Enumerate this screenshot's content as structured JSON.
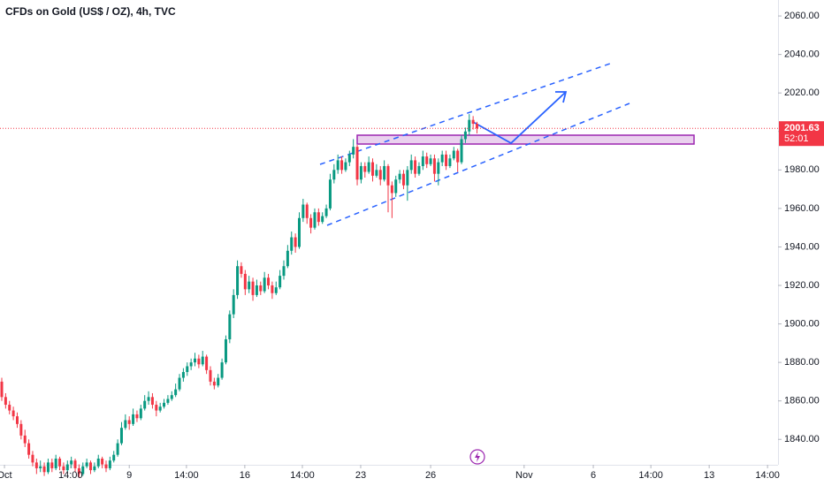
{
  "chart_data": {
    "type": "candlestick",
    "title": "CFDs on Gold (US$ / OZ), 4h, TVC",
    "up_color": "#089981",
    "down_color": "#f23645",
    "ylim": [
      1826.8,
      2068.3
    ],
    "yticks": [
      {
        "value": 1840,
        "label": "1840.00"
      },
      {
        "value": 1860,
        "label": "1860.00"
      },
      {
        "value": 1880,
        "label": "1880.00"
      },
      {
        "value": 1900,
        "label": "1900.00"
      },
      {
        "value": 1920,
        "label": "1920.00"
      },
      {
        "value": 1940,
        "label": "1940.00"
      },
      {
        "value": 1960,
        "label": "1960.00"
      },
      {
        "value": 1980,
        "label": "1980.00"
      },
      {
        "value": 2000,
        "label": "2000.00"
      },
      {
        "value": 2020,
        "label": "2020.00"
      },
      {
        "value": 2040,
        "label": "2040.00"
      },
      {
        "value": 2060,
        "label": "2060.00"
      }
    ],
    "xticks": [
      {
        "value": 0.7,
        "label": "Oct"
      },
      {
        "value": 17.8,
        "label": "14:00"
      },
      {
        "value": 33,
        "label": "9"
      },
      {
        "value": 47.8,
        "label": "14:00"
      },
      {
        "value": 62.9,
        "label": "16"
      },
      {
        "value": 77.8,
        "label": "14:00"
      },
      {
        "value": 92.9,
        "label": "23"
      },
      {
        "value": 111,
        "label": "26"
      },
      {
        "value": 135.2,
        "label": "Nov"
      },
      {
        "value": 153.1,
        "label": "6"
      },
      {
        "value": 168,
        "label": "14:00"
      },
      {
        "value": 183.1,
        "label": "13"
      },
      {
        "value": 198.2,
        "label": "14:00"
      }
    ],
    "last_price": 2001.63,
    "countdown": "52:01",
    "ohlc": [
      [
        1870,
        1872,
        1860,
        1862
      ],
      [
        1862,
        1864,
        1856,
        1858
      ],
      [
        1858,
        1860,
        1853,
        1855
      ],
      [
        1855,
        1857,
        1850,
        1852
      ],
      [
        1852,
        1854,
        1846,
        1848
      ],
      [
        1848,
        1850,
        1840,
        1842
      ],
      [
        1842,
        1845,
        1836,
        1838
      ],
      [
        1838,
        1840,
        1830,
        1832
      ],
      [
        1832,
        1834,
        1826,
        1828
      ],
      [
        1828,
        1830,
        1822,
        1825
      ],
      [
        1825,
        1829,
        1823,
        1826
      ],
      [
        1826,
        1828,
        1821,
        1823
      ],
      [
        1823,
        1830,
        1822,
        1828
      ],
      [
        1828,
        1830,
        1823,
        1825
      ],
      [
        1825,
        1832,
        1824,
        1830
      ],
      [
        1830,
        1831,
        1824,
        1826
      ],
      [
        1826,
        1828,
        1822,
        1824
      ],
      [
        1824,
        1829,
        1823,
        1827
      ],
      [
        1827,
        1831,
        1825,
        1829
      ],
      [
        1829,
        1830,
        1823,
        1825
      ],
      [
        1825,
        1827,
        1820,
        1822
      ],
      [
        1822,
        1828,
        1821,
        1826
      ],
      [
        1826,
        1830,
        1825,
        1828
      ],
      [
        1828,
        1829,
        1822,
        1824
      ],
      [
        1824,
        1828,
        1823,
        1826
      ],
      [
        1826,
        1832,
        1825,
        1830
      ],
      [
        1830,
        1831,
        1825,
        1827
      ],
      [
        1827,
        1829,
        1823,
        1825
      ],
      [
        1825,
        1831,
        1824,
        1829
      ],
      [
        1829,
        1834,
        1828,
        1832
      ],
      [
        1832,
        1840,
        1831,
        1838
      ],
      [
        1838,
        1849,
        1837,
        1846
      ],
      [
        1846,
        1853,
        1845,
        1850
      ],
      [
        1850,
        1852,
        1845,
        1848
      ],
      [
        1848,
        1856,
        1847,
        1853
      ],
      [
        1853,
        1855,
        1849,
        1851
      ],
      [
        1851,
        1858,
        1850,
        1856
      ],
      [
        1856,
        1863,
        1855,
        1860
      ],
      [
        1860,
        1865,
        1858,
        1862
      ],
      [
        1862,
        1864,
        1856,
        1858
      ],
      [
        1858,
        1860,
        1852,
        1855
      ],
      [
        1855,
        1859,
        1854,
        1857
      ],
      [
        1857,
        1861,
        1856,
        1859
      ],
      [
        1859,
        1863,
        1858,
        1861
      ],
      [
        1861,
        1865,
        1860,
        1863
      ],
      [
        1863,
        1869,
        1862,
        1866
      ],
      [
        1866,
        1874,
        1865,
        1872
      ],
      [
        1872,
        1877,
        1870,
        1875
      ],
      [
        1875,
        1880,
        1873,
        1878
      ],
      [
        1878,
        1882,
        1876,
        1880
      ],
      [
        1880,
        1885,
        1878,
        1882
      ],
      [
        1882,
        1884,
        1877,
        1879
      ],
      [
        1879,
        1886,
        1878,
        1883
      ],
      [
        1883,
        1884,
        1874,
        1876
      ],
      [
        1876,
        1878,
        1868,
        1870
      ],
      [
        1870,
        1872,
        1866,
        1868
      ],
      [
        1868,
        1874,
        1867,
        1872
      ],
      [
        1872,
        1882,
        1871,
        1880
      ],
      [
        1880,
        1894,
        1879,
        1892
      ],
      [
        1892,
        1907,
        1890,
        1905
      ],
      [
        1905,
        1918,
        1903,
        1915
      ],
      [
        1915,
        1933,
        1913,
        1930
      ],
      [
        1930,
        1932,
        1924,
        1926
      ],
      [
        1926,
        1928,
        1915,
        1918
      ],
      [
        1918,
        1925,
        1916,
        1922
      ],
      [
        1922,
        1924,
        1912,
        1915
      ],
      [
        1915,
        1923,
        1914,
        1920
      ],
      [
        1920,
        1922,
        1915,
        1917
      ],
      [
        1917,
        1927,
        1916,
        1924
      ],
      [
        1924,
        1926,
        1918,
        1920
      ],
      [
        1920,
        1922,
        1913,
        1916
      ],
      [
        1916,
        1922,
        1915,
        1919
      ],
      [
        1919,
        1928,
        1918,
        1925
      ],
      [
        1925,
        1933,
        1923,
        1930
      ],
      [
        1930,
        1941,
        1929,
        1938
      ],
      [
        1938,
        1948,
        1936,
        1945
      ],
      [
        1945,
        1947,
        1937,
        1940
      ],
      [
        1940,
        1958,
        1939,
        1955
      ],
      [
        1955,
        1965,
        1953,
        1962
      ],
      [
        1962,
        1963,
        1952,
        1955
      ],
      [
        1955,
        1957,
        1947,
        1950
      ],
      [
        1950,
        1960,
        1949,
        1958
      ],
      [
        1958,
        1960,
        1951,
        1953
      ],
      [
        1953,
        1958,
        1952,
        1956
      ],
      [
        1956,
        1962,
        1955,
        1960
      ],
      [
        1960,
        1978,
        1959,
        1975
      ],
      [
        1975,
        1983,
        1973,
        1980
      ],
      [
        1980,
        1988,
        1978,
        1985
      ],
      [
        1985,
        1987,
        1978,
        1980
      ],
      [
        1980,
        1986,
        1979,
        1984
      ],
      [
        1984,
        1990,
        1982,
        1988
      ],
      [
        1988,
        1996,
        1986,
        1992
      ],
      [
        1992,
        1993,
        1972,
        1975
      ],
      [
        1975,
        1984,
        1973,
        1982
      ],
      [
        1982,
        1984,
        1976,
        1979
      ],
      [
        1979,
        1987,
        1978,
        1984
      ],
      [
        1984,
        1986,
        1974,
        1977
      ],
      [
        1977,
        1983,
        1976,
        1980
      ],
      [
        1980,
        1982,
        1972,
        1975
      ],
      [
        1975,
        1985,
        1974,
        1982
      ],
      [
        1982,
        1983,
        1958,
        1972
      ],
      [
        1972,
        1974,
        1955,
        1968
      ],
      [
        1968,
        1977,
        1966,
        1975
      ],
      [
        1975,
        1980,
        1973,
        1978
      ],
      [
        1978,
        1980,
        1970,
        1972
      ],
      [
        1972,
        1982,
        1964,
        1980
      ],
      [
        1980,
        1988,
        1978,
        1985
      ],
      [
        1985,
        1987,
        1976,
        1978
      ],
      [
        1978,
        1984,
        1977,
        1982
      ],
      [
        1982,
        1990,
        1980,
        1987
      ],
      [
        1987,
        1989,
        1981,
        1983
      ],
      [
        1983,
        1988,
        1982,
        1986
      ],
      [
        1986,
        1988,
        1974,
        1978
      ],
      [
        1978,
        1986,
        1972,
        1984
      ],
      [
        1984,
        1990,
        1982,
        1988
      ],
      [
        1988,
        1990,
        1980,
        1982
      ],
      [
        1982,
        1988,
        1981,
        1986
      ],
      [
        1986,
        1992,
        1985,
        1990
      ],
      [
        1990,
        1991,
        1979,
        1984
      ],
      [
        1984,
        1998,
        1983,
        1996
      ],
      [
        1996,
        2002,
        1994,
        2000
      ],
      [
        2000,
        2009,
        1998,
        2006
      ],
      [
        2006,
        2008,
        2001,
        2004
      ],
      [
        2004,
        2005,
        1999,
        2001.63
      ]
    ]
  }
}
